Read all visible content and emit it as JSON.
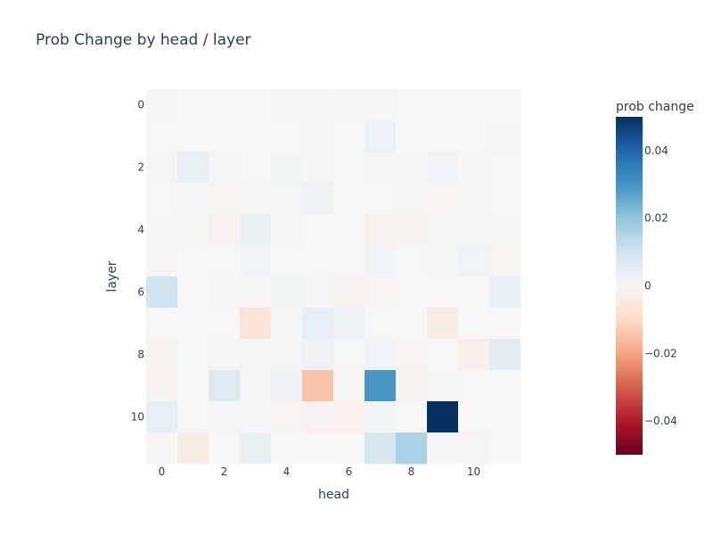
{
  "chart_data": {
    "type": "heatmap",
    "title": "Prob Change by head / layer",
    "xlabel": "head",
    "ylabel": "layer",
    "colorbar_title": "prob change",
    "x_tick_labels": [
      "0",
      "2",
      "4",
      "6",
      "8",
      "10"
    ],
    "y_tick_labels": [
      "0",
      "2",
      "4",
      "6",
      "8",
      "10"
    ],
    "colorbar_tick_labels": [
      "0.04",
      "0.02",
      "0",
      "−0.02",
      "−0.04"
    ],
    "x": [
      0,
      1,
      2,
      3,
      4,
      5,
      6,
      7,
      8,
      9,
      10,
      11
    ],
    "y": [
      0,
      1,
      2,
      3,
      4,
      5,
      6,
      7,
      8,
      9,
      10,
      11
    ],
    "zmin": -0.05,
    "zmax": 0.05,
    "colorscale": "RdBu",
    "z": [
      [
        0.0003,
        0.0002,
        0.0,
        0.0,
        -0.0003,
        -0.0002,
        -0.0006,
        0.0003,
        0.0002,
        0.0,
        0.0,
        0.0
      ],
      [
        0.0,
        0.0,
        0.0002,
        0.0,
        0.0,
        0.0003,
        0.0,
        0.003,
        0.0,
        0.0,
        0.0,
        -0.0004
      ],
      [
        -0.0006,
        0.004,
        0.0003,
        0.0002,
        0.0012,
        0.0003,
        0.0002,
        -0.0002,
        0.0003,
        0.0015,
        0.0003,
        0.0
      ],
      [
        0.0,
        0.0006,
        -0.0012,
        0.0003,
        0.0008,
        0.0022,
        0.0,
        0.0,
        0.0004,
        -0.0012,
        0.0005,
        0.0
      ],
      [
        -0.0003,
        -0.0005,
        -0.002,
        0.0035,
        -0.0006,
        0.0,
        0.0,
        -0.0018,
        -0.0015,
        0.001,
        0.0004,
        -0.0006
      ],
      [
        -0.0005,
        0.0,
        0.0,
        0.0015,
        0.0,
        0.0,
        0.0,
        0.0018,
        0.0,
        -0.0003,
        0.0018,
        -0.0012
      ],
      [
        0.01,
        0.0,
        -0.0008,
        -0.0004,
        0.0012,
        0.0008,
        -0.0015,
        -0.0012,
        0.0,
        0.0,
        0.0,
        0.0035
      ],
      [
        0.0002,
        0.0002,
        0.0,
        -0.0065,
        0.0004,
        0.0045,
        0.0025,
        0.0,
        0.0,
        -0.004,
        0.0,
        0.0
      ],
      [
        -0.0015,
        0.0002,
        0.0003,
        -0.0008,
        -0.0008,
        0.0028,
        0.0002,
        0.0015,
        -0.0012,
        0.0002,
        -0.0025,
        0.0055
      ],
      [
        -0.0015,
        0.0,
        0.007,
        0.0004,
        0.0025,
        -0.0145,
        -0.0008,
        0.0295,
        -0.0018,
        0.0005,
        0.0,
        0.0
      ],
      [
        0.0045,
        0.0,
        0.0005,
        0.0004,
        -0.0012,
        -0.0015,
        -0.0022,
        0.0012,
        0.0,
        0.05,
        0.0,
        0.0
      ],
      [
        -0.0004,
        -0.004,
        0.0002,
        0.004,
        0.0,
        0.0,
        0.0,
        0.0085,
        0.016,
        0.0003,
        -0.0008,
        0.0
      ]
    ]
  }
}
